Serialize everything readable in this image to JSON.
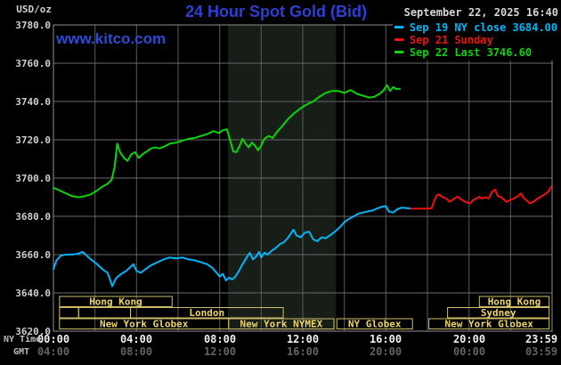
{
  "header": {
    "units_label": "USD/oz",
    "title": "24 Hour Spot Gold (Bid)",
    "datetime": "September 22, 2025 16:40",
    "watermark": "www.kitco.com"
  },
  "legend": [
    {
      "label": "Sep 19 NY close 3684.00",
      "color": "#00b4f8"
    },
    {
      "label": "Sep 21 Sunday",
      "color": "#ee1111"
    },
    {
      "label": "Sep 22 Last 3746.60",
      "color": "#0ad40a"
    }
  ],
  "axes": {
    "ny_label": "NY Time",
    "gmt_label": "GMT"
  },
  "chart_data": {
    "type": "line",
    "title": "24 Hour Spot Gold (Bid)",
    "xlabel": "NY Time",
    "ylabel": "USD/oz",
    "xlim": [
      0,
      24
    ],
    "ylim": [
      3620,
      3780
    ],
    "y_tick_step": 20,
    "y_tick_labels": [
      "3780.0",
      "3760.0",
      "3740.0",
      "3720.0",
      "3700.0",
      "3680.0",
      "3660.0",
      "3640.0",
      "3620.0"
    ],
    "x_ticks": [
      {
        "h": 0,
        "ny": "00:00",
        "gmt": "04:00"
      },
      {
        "h": 4,
        "ny": "04:00",
        "gmt": "08:00"
      },
      {
        "h": 8,
        "ny": "08:00",
        "gmt": "12:00"
      },
      {
        "h": 12,
        "ny": "12:00",
        "gmt": "16:00"
      },
      {
        "h": 16,
        "ny": "16:00",
        "gmt": "20:00"
      },
      {
        "h": 20,
        "ny": "20:00",
        "gmt": "00:00"
      },
      {
        "h": 23.983,
        "ny": "23:59",
        "gmt": "03:59",
        "align": "right"
      }
    ],
    "grid_color_v": "#5a5a5a",
    "grid_color_h": "#6a6a6a",
    "border_color": "#909090",
    "highlight_band": {
      "from_h": 8.4,
      "to_h": 13.6,
      "color": "#171d17"
    },
    "series": [
      {
        "id": "sep22-today",
        "name": "Sep 22 Last 3746.60",
        "color": "#0ad40a",
        "points": [
          [
            0,
            3695
          ],
          [
            0.3,
            3693.5
          ],
          [
            0.6,
            3692
          ],
          [
            0.9,
            3690.5
          ],
          [
            1.2,
            3690
          ],
          [
            1.5,
            3690.5
          ],
          [
            1.8,
            3691.5
          ],
          [
            2.1,
            3693.5
          ],
          [
            2.35,
            3695.5
          ],
          [
            2.6,
            3697
          ],
          [
            2.8,
            3699
          ],
          [
            2.95,
            3706
          ],
          [
            3.07,
            3718
          ],
          [
            3.2,
            3713.5
          ],
          [
            3.4,
            3710.5
          ],
          [
            3.56,
            3709
          ],
          [
            3.75,
            3712.5
          ],
          [
            3.93,
            3713.5
          ],
          [
            4.1,
            3710.5
          ],
          [
            4.3,
            3712.5
          ],
          [
            4.5,
            3714
          ],
          [
            4.7,
            3715.5
          ],
          [
            4.9,
            3716
          ],
          [
            5.1,
            3715.5
          ],
          [
            5.35,
            3716.5
          ],
          [
            5.6,
            3718
          ],
          [
            5.9,
            3718.5
          ],
          [
            6.2,
            3719.5
          ],
          [
            6.5,
            3720.5
          ],
          [
            6.8,
            3721
          ],
          [
            7.1,
            3722
          ],
          [
            7.4,
            3723
          ],
          [
            7.7,
            3724.5
          ],
          [
            7.95,
            3723.5
          ],
          [
            8.15,
            3725
          ],
          [
            8.35,
            3725.5
          ],
          [
            8.5,
            3720
          ],
          [
            8.65,
            3714
          ],
          [
            8.8,
            3713.5
          ],
          [
            8.95,
            3716.5
          ],
          [
            9.1,
            3720.5
          ],
          [
            9.25,
            3718
          ],
          [
            9.4,
            3716
          ],
          [
            9.55,
            3718.5
          ],
          [
            9.7,
            3717
          ],
          [
            9.85,
            3714.5
          ],
          [
            10,
            3717
          ],
          [
            10.15,
            3720.5
          ],
          [
            10.35,
            3722
          ],
          [
            10.55,
            3721
          ],
          [
            10.75,
            3724
          ],
          [
            11,
            3727
          ],
          [
            11.3,
            3731
          ],
          [
            11.6,
            3734
          ],
          [
            11.9,
            3736.5
          ],
          [
            12.2,
            3738.5
          ],
          [
            12.5,
            3740
          ],
          [
            12.8,
            3742.5
          ],
          [
            13.1,
            3744.5
          ],
          [
            13.4,
            3745.5
          ],
          [
            13.7,
            3745.5
          ],
          [
            14,
            3744.5
          ],
          [
            14.3,
            3746
          ],
          [
            14.6,
            3744
          ],
          [
            14.9,
            3743
          ],
          [
            15.2,
            3742
          ],
          [
            15.45,
            3742.5
          ],
          [
            15.7,
            3744
          ],
          [
            15.9,
            3746
          ],
          [
            16.05,
            3748.5
          ],
          [
            16.2,
            3745.5
          ],
          [
            16.35,
            3747.5
          ],
          [
            16.5,
            3746.5
          ],
          [
            16.67,
            3746.6
          ]
        ]
      },
      {
        "id": "sep19-friday",
        "name": "Sep 19 NY close 3684.00",
        "color": "#00b4f8",
        "points": [
          [
            0,
            3652.5
          ],
          [
            0.15,
            3657
          ],
          [
            0.35,
            3659.5
          ],
          [
            0.6,
            3660
          ],
          [
            0.9,
            3660
          ],
          [
            1.2,
            3660.5
          ],
          [
            1.4,
            3661.5
          ],
          [
            1.6,
            3659.5
          ],
          [
            1.8,
            3657.5
          ],
          [
            2.1,
            3655
          ],
          [
            2.4,
            3652
          ],
          [
            2.6,
            3650.5
          ],
          [
            2.72,
            3647
          ],
          [
            2.83,
            3643.5
          ],
          [
            3,
            3647.5
          ],
          [
            3.2,
            3649.5
          ],
          [
            3.5,
            3651.5
          ],
          [
            3.7,
            3653.5
          ],
          [
            3.85,
            3655
          ],
          [
            4,
            3651.5
          ],
          [
            4.2,
            3650.5
          ],
          [
            4.45,
            3652.5
          ],
          [
            4.7,
            3654.5
          ],
          [
            5,
            3656
          ],
          [
            5.3,
            3657.5
          ],
          [
            5.6,
            3658.5
          ],
          [
            5.9,
            3658
          ],
          [
            6.2,
            3658.5
          ],
          [
            6.5,
            3657.5
          ],
          [
            6.8,
            3657
          ],
          [
            7.1,
            3656
          ],
          [
            7.4,
            3655
          ],
          [
            7.65,
            3653
          ],
          [
            7.85,
            3650.5
          ],
          [
            8,
            3648.5
          ],
          [
            8.15,
            3650
          ],
          [
            8.3,
            3646.5
          ],
          [
            8.45,
            3648
          ],
          [
            8.6,
            3647
          ],
          [
            8.75,
            3648.5
          ],
          [
            8.9,
            3651
          ],
          [
            9.1,
            3655
          ],
          [
            9.3,
            3658.5
          ],
          [
            9.45,
            3661
          ],
          [
            9.6,
            3657.5
          ],
          [
            9.75,
            3659
          ],
          [
            9.9,
            3661.5
          ],
          [
            10,
            3658.5
          ],
          [
            10.15,
            3661
          ],
          [
            10.3,
            3660
          ],
          [
            10.5,
            3662
          ],
          [
            10.7,
            3663.5
          ],
          [
            10.9,
            3665.5
          ],
          [
            11.1,
            3666.5
          ],
          [
            11.3,
            3669
          ],
          [
            11.55,
            3673
          ],
          [
            11.7,
            3670
          ],
          [
            11.9,
            3669
          ],
          [
            12.1,
            3671.5
          ],
          [
            12.3,
            3672
          ],
          [
            12.5,
            3668
          ],
          [
            12.7,
            3667
          ],
          [
            12.9,
            3669
          ],
          [
            13.1,
            3668.5
          ],
          [
            13.3,
            3670
          ],
          [
            13.55,
            3672
          ],
          [
            13.8,
            3674.5
          ],
          [
            14,
            3677
          ],
          [
            14.2,
            3678.5
          ],
          [
            14.45,
            3680
          ],
          [
            14.7,
            3681.5
          ],
          [
            14.9,
            3682
          ],
          [
            15.1,
            3682.5
          ],
          [
            15.35,
            3683
          ],
          [
            15.55,
            3684
          ],
          [
            15.8,
            3685
          ],
          [
            16,
            3685.3
          ],
          [
            16.15,
            3682.5
          ],
          [
            16.35,
            3682
          ],
          [
            16.55,
            3683.7
          ],
          [
            16.75,
            3684.5
          ],
          [
            17,
            3684.3
          ],
          [
            17.2,
            3684
          ]
        ]
      },
      {
        "id": "sep21-sunday",
        "name": "Sep 21 Sunday",
        "color": "#ee1111",
        "points": [
          [
            17.2,
            3684
          ],
          [
            17.6,
            3684
          ],
          [
            18,
            3684
          ],
          [
            18.2,
            3684.2
          ],
          [
            18.32,
            3688
          ],
          [
            18.45,
            3691
          ],
          [
            18.55,
            3691.5
          ],
          [
            18.7,
            3690.3
          ],
          [
            18.9,
            3689.3
          ],
          [
            19.07,
            3687.6
          ],
          [
            19.25,
            3689
          ],
          [
            19.45,
            3690.3
          ],
          [
            19.6,
            3689
          ],
          [
            19.75,
            3688
          ],
          [
            19.9,
            3687.2
          ],
          [
            20.06,
            3686.8
          ],
          [
            20.2,
            3688.5
          ],
          [
            20.35,
            3689.3
          ],
          [
            20.5,
            3690.2
          ],
          [
            20.62,
            3689.3
          ],
          [
            20.8,
            3690
          ],
          [
            20.95,
            3689.3
          ],
          [
            21.1,
            3692.7
          ],
          [
            21.25,
            3694
          ],
          [
            21.4,
            3690.5
          ],
          [
            21.55,
            3690
          ],
          [
            21.8,
            3687.6
          ],
          [
            21.95,
            3688.4
          ],
          [
            22.15,
            3689.3
          ],
          [
            22.35,
            3690.5
          ],
          [
            22.5,
            3692
          ],
          [
            22.6,
            3690
          ],
          [
            22.75,
            3688.4
          ],
          [
            22.93,
            3686.8
          ],
          [
            23.1,
            3687.6
          ],
          [
            23.3,
            3689.3
          ],
          [
            23.5,
            3690.5
          ],
          [
            23.65,
            3691.5
          ],
          [
            23.8,
            3692.7
          ],
          [
            23.95,
            3695.3
          ]
        ]
      }
    ]
  },
  "sessions": {
    "border_color": "#cdbd6a",
    "text_color": "#ecd568",
    "row_tops": [
      333,
      345.5,
      358
    ],
    "row_height": 11.5,
    "rows": [
      [
        {
          "label": "Hong Kong",
          "from": 0.29,
          "to": 5.71
        },
        {
          "label": "Hong Kong",
          "from": 20.5,
          "to": 23.86
        }
      ],
      [
        {
          "label": "",
          "from": 0.29,
          "to": 1.21
        },
        {
          "label": "",
          "from": 1.21,
          "to": 3.71
        },
        {
          "label": "London",
          "from": 3.71,
          "to": 11.06
        },
        {
          "label": "Sydney",
          "from": 18.97,
          "to": 23.86
        }
      ],
      [
        {
          "label": "New York Globex",
          "from": 0.29,
          "to": 8.43
        },
        {
          "label": "New York NYMEX",
          "from": 8.43,
          "to": 13.5
        },
        {
          "label": "NY Globex",
          "from": 13.64,
          "to": 17.28
        },
        {
          "label": "New York Globex",
          "from": 18.07,
          "to": 23.86
        }
      ]
    ]
  }
}
